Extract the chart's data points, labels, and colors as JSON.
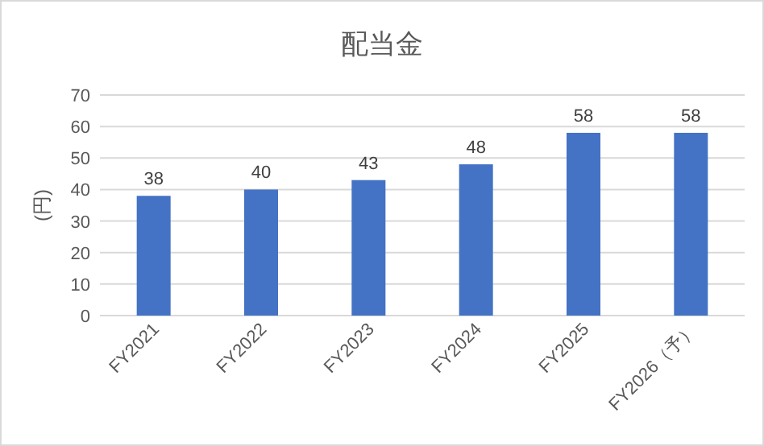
{
  "chart_data": {
    "type": "bar",
    "title": "配当金",
    "ylabel": "(円)",
    "categories": [
      "FY2021",
      "FY2022",
      "FY2023",
      "FY2024",
      "FY2025",
      "FY2026（予）"
    ],
    "values": [
      38,
      40,
      43,
      48,
      58,
      58
    ],
    "color": "#4472c4",
    "ylim": [
      0,
      70
    ],
    "yticks": [
      0,
      10,
      20,
      30,
      40,
      50,
      60,
      70
    ],
    "grid": "y",
    "data_labels": true
  }
}
